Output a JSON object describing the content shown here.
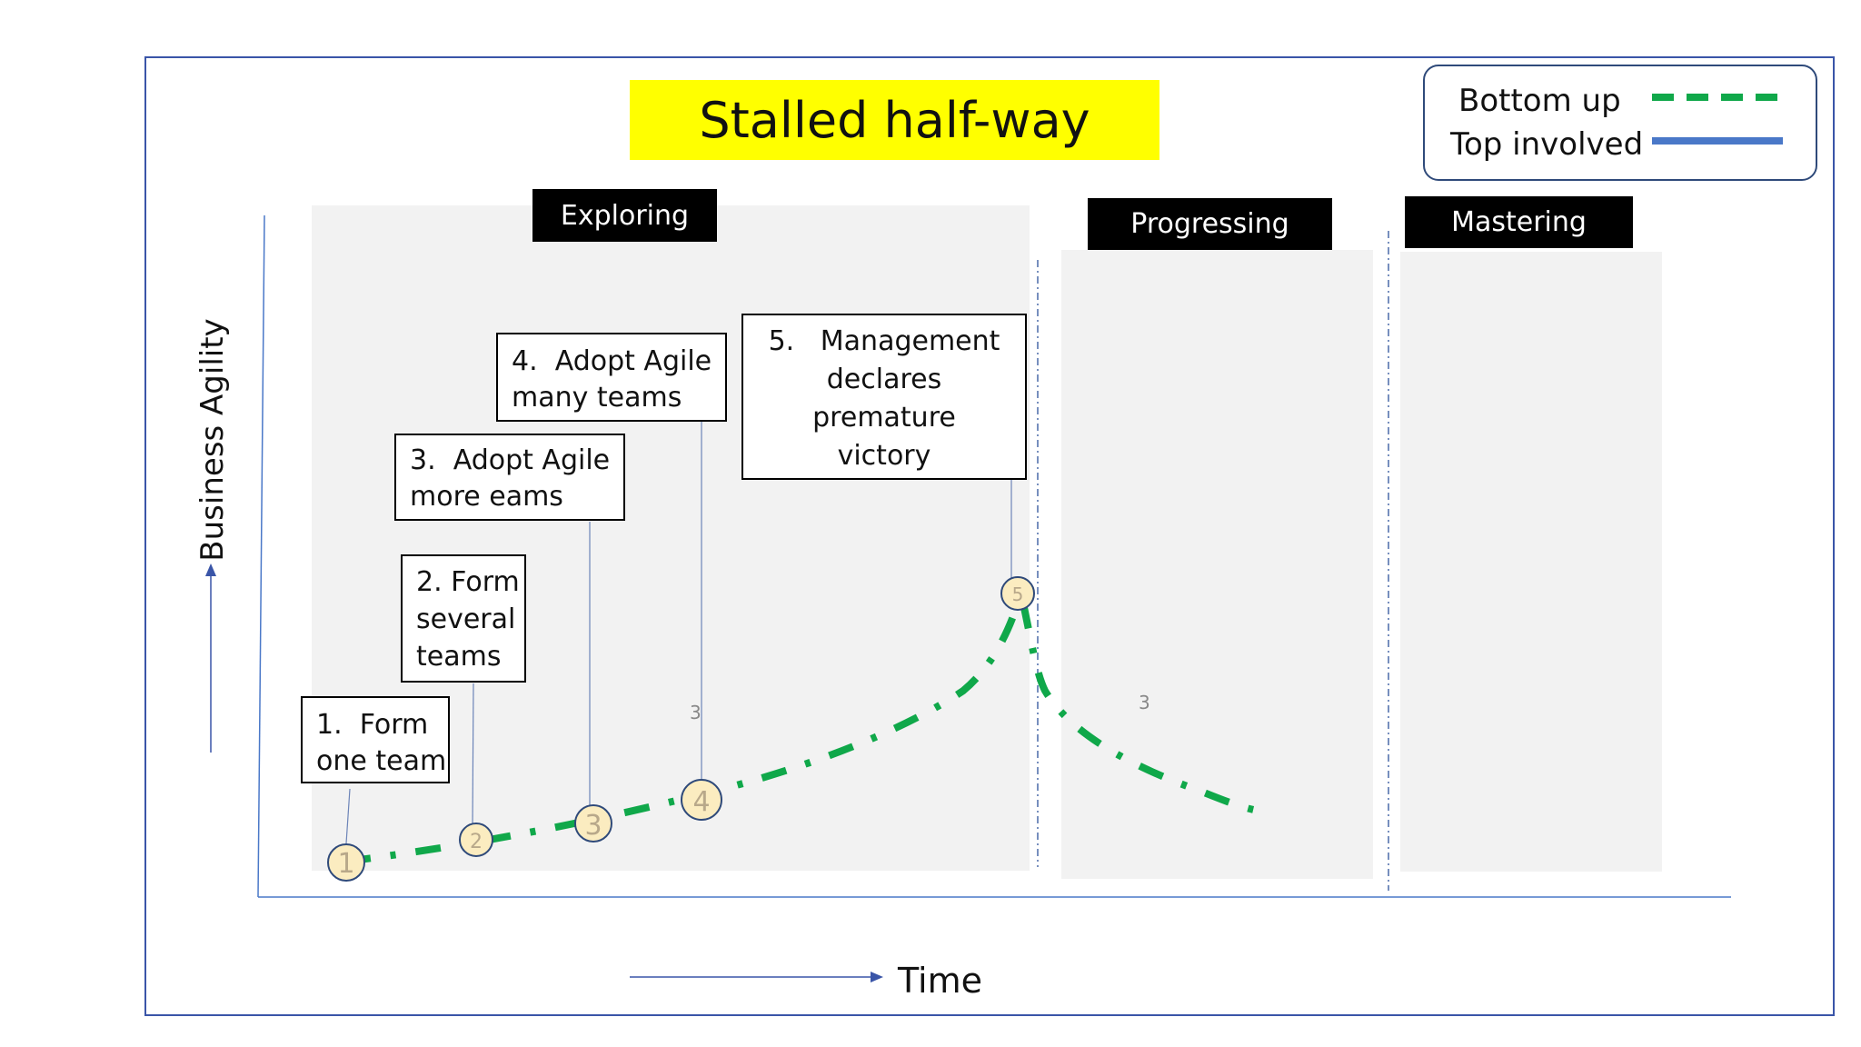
{
  "title": "Stalled half-way",
  "legend": {
    "bottom_up": "Bottom up",
    "top_involved": "Top involved"
  },
  "phases": {
    "exploring": "Exploring",
    "progressing": "Progressing",
    "mastering": "Mastering"
  },
  "axes": {
    "y_label": "Business Agility",
    "x_label": "Time"
  },
  "steps": [
    {
      "number": "1",
      "text_line1": "1.  Form",
      "text_line2": "one team"
    },
    {
      "number": "2",
      "text_line1": "2. Form",
      "text_line2": "several",
      "text_line3": "teams"
    },
    {
      "number": "3",
      "text_line1": "3.  Adopt Agile",
      "text_line2": "more eams"
    },
    {
      "number": "4",
      "text_line1": "4.  Adopt Agile",
      "text_line2": "many teams"
    },
    {
      "number": "5",
      "text_line1": "5.   Management",
      "text_line2": "declares",
      "text_line3": "premature",
      "text_line4": "victory"
    }
  ],
  "stray_labels": {
    "a": "3",
    "b": "3"
  },
  "colors": {
    "title_bg": "#ffff00",
    "frame": "#3a55a8",
    "bottom_up": "#10a84a",
    "top_involved": "#4a78c8",
    "phase_label_bg": "#000000",
    "phase_area": "#f2f2f2",
    "marker_fill": "#fbecc0",
    "marker_stroke": "#2f4a7a"
  }
}
